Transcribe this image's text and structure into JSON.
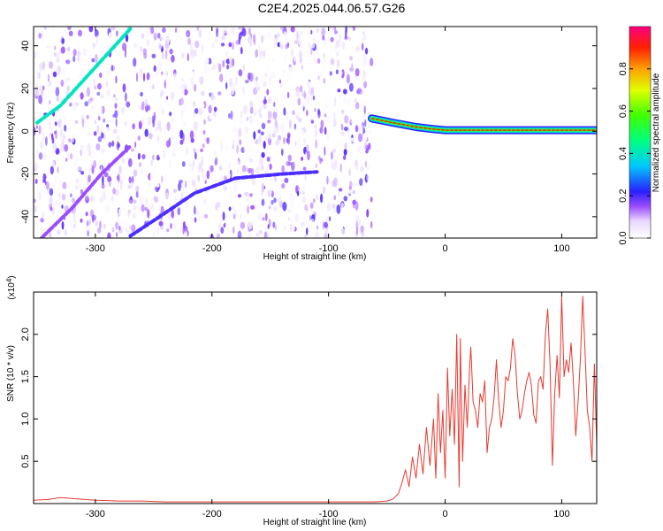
{
  "chart_data": [
    {
      "type": "heatmap",
      "title": "C2E4.2025.044.06.57.G26",
      "xlabel": "Height of straight line (km)",
      "ylabel": "Frequency (Hz)",
      "xlim": [
        -353,
        130
      ],
      "ylim": [
        -50,
        49
      ],
      "xticks": [
        -300,
        -200,
        -100,
        0,
        100
      ],
      "xtick_labels": [
        "-300",
        "-200",
        "-100",
        "0",
        "100"
      ],
      "yticks": [
        -40,
        -20,
        0,
        20,
        40
      ],
      "ytick_labels": [
        "-40",
        "-20",
        "0",
        "20",
        "40"
      ],
      "colorbar": {
        "label": "Normalized spectral amplitude",
        "range": [
          0,
          1
        ],
        "ticks": [
          0.0,
          0.2,
          0.4,
          0.6,
          0.8
        ],
        "tick_labels": [
          "0.0",
          "0.2",
          "0.4",
          "0.6",
          "0.8"
        ]
      },
      "features": [
        {
          "kind": "noise",
          "x_range": [
            -353,
            -63
          ],
          "y_range": [
            -50,
            49
          ],
          "amplitude_range": [
            0.0,
            0.2
          ]
        },
        {
          "kind": "line",
          "points": [
            [
              -350,
              4
            ],
            [
              -330,
              12
            ],
            [
              -310,
              24
            ],
            [
              -290,
              36
            ],
            [
              -270,
              48
            ]
          ],
          "amplitude": 0.4
        },
        {
          "kind": "line",
          "points": [
            [
              -270,
              -49
            ],
            [
              -245,
              -40
            ],
            [
              -215,
              -29
            ],
            [
              -180,
              -22
            ],
            [
              -140,
              -20
            ],
            [
              -110,
              -19
            ]
          ],
          "amplitude": 0.2
        },
        {
          "kind": "line",
          "points": [
            [
              -350,
              -52
            ],
            [
              -320,
              -36
            ],
            [
              -295,
              -20
            ],
            [
              -270,
              -7
            ]
          ],
          "amplitude": 0.15
        },
        {
          "kind": "carrier",
          "points": [
            [
              -63,
              6
            ],
            [
              -45,
              4
            ],
            [
              -25,
              2
            ],
            [
              -10,
              1
            ],
            [
              0,
              0.5
            ],
            [
              130,
              0.5
            ]
          ],
          "amplitude": 0.9
        }
      ]
    },
    {
      "type": "line",
      "xlabel": "Height of straight line (km)",
      "ylabel": "SNR (10 * v/v)",
      "yscale_label": "(x10^4)",
      "yscale_base": "x10",
      "yscale_exp": "4",
      "xlim": [
        -353,
        130
      ],
      "ylim": [
        0,
        2.5
      ],
      "xticks": [
        -300,
        -200,
        -100,
        0,
        100
      ],
      "xtick_labels": [
        "-300",
        "-200",
        "-100",
        "0",
        "100"
      ],
      "yticks": [
        0.5,
        1.0,
        1.5,
        2.0
      ],
      "ytick_labels": [
        "0.5",
        "1.0",
        "1.5",
        "2.0"
      ],
      "series": [
        {
          "color": "#e83a30",
          "x": [
            -353,
            -340,
            -330,
            -320,
            -310,
            -300,
            -280,
            -260,
            -240,
            -220,
            -200,
            -180,
            -160,
            -140,
            -120,
            -100,
            -80,
            -60,
            -50,
            -45,
            -40,
            -37,
            -34,
            -31,
            -28,
            -25,
            -22,
            -19,
            -16,
            -13,
            -10,
            -8,
            -6,
            -4,
            -2,
            0,
            2,
            4,
            6,
            8,
            10,
            12,
            13,
            15,
            17,
            19,
            21,
            22,
            24,
            26,
            28,
            30,
            32,
            34,
            36,
            38,
            40,
            42,
            44,
            46,
            48,
            50,
            52,
            54,
            56,
            58,
            60,
            62,
            64,
            66,
            68,
            70,
            72,
            74,
            76,
            78,
            80,
            82,
            84,
            86,
            88,
            90,
            92,
            94,
            96,
            98,
            100,
            102,
            104,
            106,
            108,
            110,
            112,
            114,
            116,
            118,
            120,
            122,
            124,
            126,
            128,
            130
          ],
          "y": [
            0.04,
            0.05,
            0.07,
            0.06,
            0.05,
            0.04,
            0.03,
            0.03,
            0.02,
            0.02,
            0.02,
            0.02,
            0.02,
            0.02,
            0.02,
            0.02,
            0.02,
            0.02,
            0.03,
            0.05,
            0.12,
            0.25,
            0.4,
            0.2,
            0.55,
            0.3,
            0.7,
            0.35,
            0.9,
            0.45,
            1.0,
            0.3,
            1.3,
            0.6,
            1.1,
            0.3,
            1.6,
            0.8,
            1.35,
            0.7,
            2.0,
            0.2,
            1.95,
            0.5,
            1.4,
            0.9,
            1.6,
            1.85,
            1.2,
            1.1,
            0.9,
            1.3,
            1.2,
            1.45,
            0.6,
            0.9,
            1.0,
            1.25,
            1.7,
            1.2,
            0.9,
            1.1,
            1.5,
            1.45,
            1.6,
            1.95,
            1.75,
            1.3,
            1.0,
            1.1,
            1.3,
            1.45,
            1.55,
            1.4,
            1.05,
            0.95,
            1.45,
            1.5,
            1.35,
            2.0,
            2.3,
            1.65,
            0.45,
            1.3,
            1.75,
            1.25,
            2.45,
            1.5,
            1.7,
            1.55,
            1.9,
            1.45,
            0.8,
            1.2,
            1.7,
            2.45,
            1.8,
            1.1,
            0.9,
            0.5,
            1.65,
            0.7
          ]
        }
      ]
    }
  ]
}
